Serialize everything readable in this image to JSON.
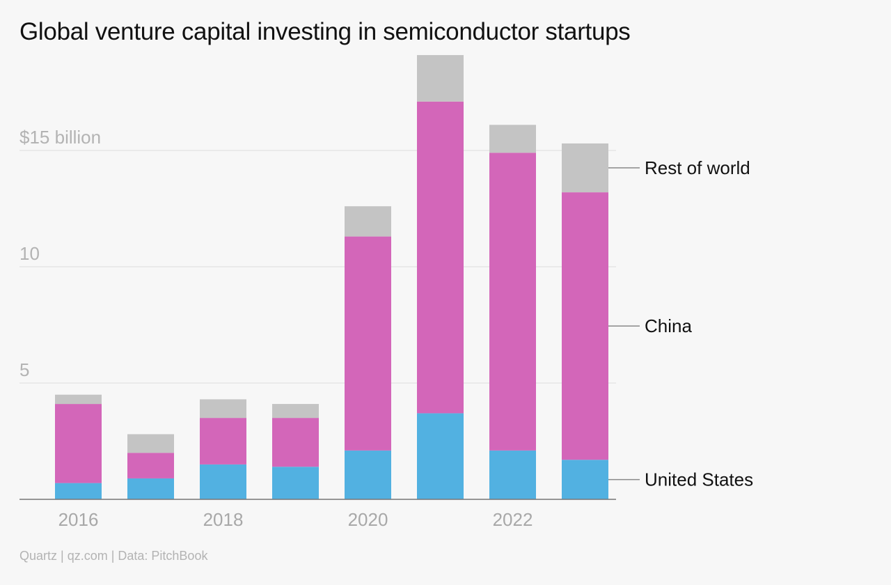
{
  "title": "Global venture capital investing in semiconductor startups",
  "source": "Quartz | qz.com | Data: PitchBook",
  "colors": {
    "background": "#f7f7f7",
    "grid": "#e2e2e2",
    "axis": "#777777",
    "leader": "#888888"
  },
  "chart_data": {
    "type": "bar",
    "stacked": true,
    "years": [
      2016,
      2017,
      2018,
      2019,
      2020,
      2021,
      2022,
      2023
    ],
    "x_tick_labels": [
      {
        "year": 2016,
        "label": "2016"
      },
      {
        "year": 2018,
        "label": "2018"
      },
      {
        "year": 2020,
        "label": "2020"
      },
      {
        "year": 2022,
        "label": "2022"
      }
    ],
    "y_ticks": [
      {
        "value": 5,
        "label": "5"
      },
      {
        "value": 10,
        "label": "10"
      },
      {
        "value": 15,
        "label": "$15 billion"
      }
    ],
    "ylim": [
      0,
      19.5
    ],
    "grid": true,
    "legend": "direct labels on right",
    "series": [
      {
        "name": "United States",
        "color": "#52b1e1",
        "values": [
          0.7,
          0.9,
          1.5,
          1.4,
          2.1,
          3.7,
          2.1,
          1.7
        ]
      },
      {
        "name": "China",
        "color": "#d366b9",
        "values": [
          3.4,
          1.1,
          2.0,
          2.1,
          9.2,
          13.4,
          12.8,
          11.5
        ]
      },
      {
        "name": "Rest of world",
        "color": "#c4c4c4",
        "values": [
          0.4,
          0.8,
          0.8,
          0.6,
          1.3,
          2.0,
          1.2,
          2.1
        ]
      }
    ]
  }
}
